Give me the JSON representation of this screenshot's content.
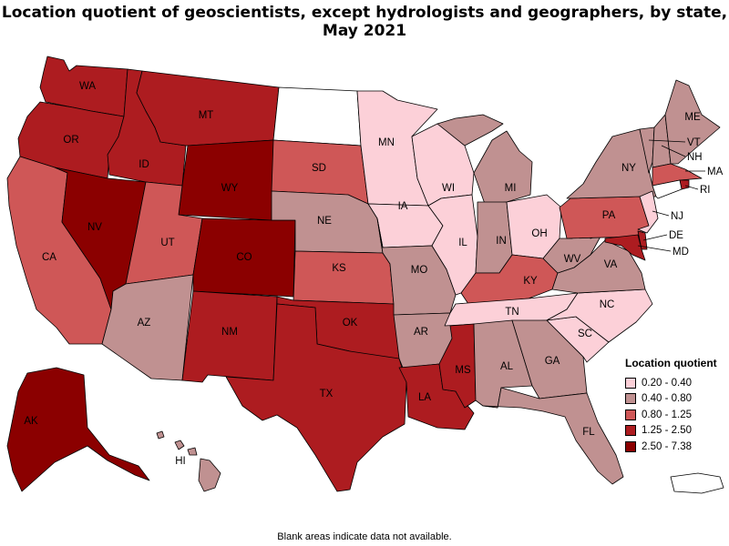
{
  "title": "Location quotient of geoscientists, except hydrologists and geographers, by state, May 2021",
  "footnote": "Blank areas indicate data not available.",
  "legend": {
    "title": "Location quotient",
    "items": [
      {
        "label": "0.20 - 0.40",
        "color": "#fcd0d8"
      },
      {
        "label": "0.40 - 0.80",
        "color": "#c09191"
      },
      {
        "label": "0.80 - 1.25",
        "color": "#cf5757"
      },
      {
        "label": "1.25 - 2.50",
        "color": "#ad1c20"
      },
      {
        "label": "2.50 - 7.38",
        "color": "#8b0000"
      }
    ]
  },
  "no_data_color": "#ffffff",
  "states": [
    {
      "abbr": "WA",
      "cls": 3
    },
    {
      "abbr": "OR",
      "cls": 3
    },
    {
      "abbr": "CA",
      "cls": 2
    },
    {
      "abbr": "ID",
      "cls": 3
    },
    {
      "abbr": "NV",
      "cls": 4
    },
    {
      "abbr": "MT",
      "cls": 3
    },
    {
      "abbr": "WY",
      "cls": 4
    },
    {
      "abbr": "UT",
      "cls": 2
    },
    {
      "abbr": "AZ",
      "cls": 1
    },
    {
      "abbr": "CO",
      "cls": 4
    },
    {
      "abbr": "NM",
      "cls": 3
    },
    {
      "abbr": "ND",
      "cls": -1
    },
    {
      "abbr": "SD",
      "cls": 2
    },
    {
      "abbr": "NE",
      "cls": 1
    },
    {
      "abbr": "KS",
      "cls": 2
    },
    {
      "abbr": "OK",
      "cls": 3
    },
    {
      "abbr": "TX",
      "cls": 3
    },
    {
      "abbr": "MN",
      "cls": 0
    },
    {
      "abbr": "IA",
      "cls": 0
    },
    {
      "abbr": "MO",
      "cls": 1
    },
    {
      "abbr": "AR",
      "cls": 1
    },
    {
      "abbr": "LA",
      "cls": 3
    },
    {
      "abbr": "WI",
      "cls": 0
    },
    {
      "abbr": "IL",
      "cls": 0
    },
    {
      "abbr": "MI",
      "cls": 1
    },
    {
      "abbr": "IN",
      "cls": 1
    },
    {
      "abbr": "OH",
      "cls": 0
    },
    {
      "abbr": "KY",
      "cls": 2
    },
    {
      "abbr": "TN",
      "cls": 0
    },
    {
      "abbr": "MS",
      "cls": 3
    },
    {
      "abbr": "AL",
      "cls": 1
    },
    {
      "abbr": "GA",
      "cls": 1
    },
    {
      "abbr": "FL",
      "cls": 1
    },
    {
      "abbr": "SC",
      "cls": 0
    },
    {
      "abbr": "NC",
      "cls": 0
    },
    {
      "abbr": "VA",
      "cls": 1
    },
    {
      "abbr": "WV",
      "cls": 1
    },
    {
      "abbr": "PA",
      "cls": 2
    },
    {
      "abbr": "NY",
      "cls": 1
    },
    {
      "abbr": "VT",
      "cls": 1
    },
    {
      "abbr": "NH",
      "cls": 1
    },
    {
      "abbr": "ME",
      "cls": 1
    },
    {
      "abbr": "MA",
      "cls": 2
    },
    {
      "abbr": "RI",
      "cls": 3
    },
    {
      "abbr": "CT",
      "cls": -1
    },
    {
      "abbr": "NJ",
      "cls": 0
    },
    {
      "abbr": "DE",
      "cls": 3
    },
    {
      "abbr": "MD",
      "cls": 3
    },
    {
      "abbr": "AK",
      "cls": 4
    },
    {
      "abbr": "HI",
      "cls": 1
    },
    {
      "abbr": "PR",
      "cls": -1
    }
  ]
}
